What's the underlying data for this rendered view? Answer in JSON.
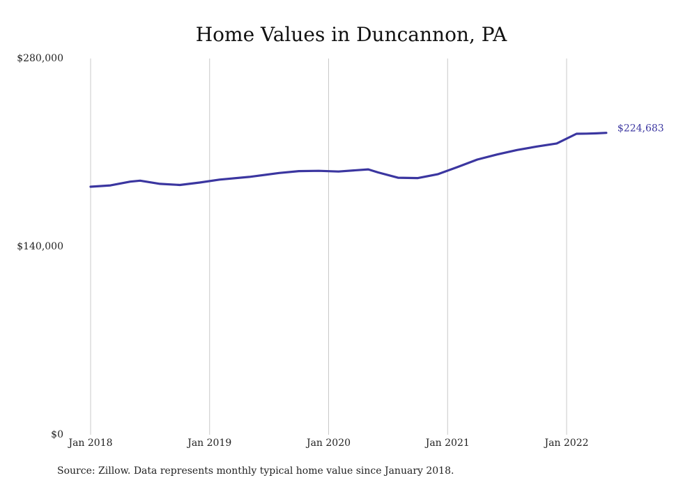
{
  "chart_data": {
    "type": "line",
    "title": "Home Values in Duncannon, PA",
    "xlabel": "",
    "ylabel": "",
    "ylim": [
      0,
      280000
    ],
    "y_ticks": [
      {
        "value": 0,
        "label": "$0"
      },
      {
        "value": 140000,
        "label": "$140,000"
      },
      {
        "value": 280000,
        "label": "$280,000"
      }
    ],
    "x_ticks": [
      {
        "value": "2018-01",
        "label": "Jan 2018"
      },
      {
        "value": "2019-01",
        "label": "Jan 2019"
      },
      {
        "value": "2020-01",
        "label": "Jan 2020"
      },
      {
        "value": "2021-01",
        "label": "Jan 2021"
      },
      {
        "value": "2022-01",
        "label": "Jan 2022"
      }
    ],
    "grid": {
      "vertical": true,
      "horizontal": false
    },
    "line_color": "#3b36a0",
    "end_label": "$224,683",
    "series": [
      {
        "points": [
          {
            "x": "2018-01",
            "y": 184600
          },
          {
            "x": "2018-03",
            "y": 185600
          },
          {
            "x": "2018-05",
            "y": 188400
          },
          {
            "x": "2018-06",
            "y": 189100
          },
          {
            "x": "2018-08",
            "y": 186700
          },
          {
            "x": "2018-10",
            "y": 185900
          },
          {
            "x": "2018-12",
            "y": 187700
          },
          {
            "x": "2019-02",
            "y": 189900
          },
          {
            "x": "2019-05",
            "y": 191900
          },
          {
            "x": "2019-08",
            "y": 194800
          },
          {
            "x": "2019-10",
            "y": 196200
          },
          {
            "x": "2019-12",
            "y": 196400
          },
          {
            "x": "2020-02",
            "y": 195900
          },
          {
            "x": "2020-05",
            "y": 197500
          },
          {
            "x": "2020-06",
            "y": 195200
          },
          {
            "x": "2020-08",
            "y": 191300
          },
          {
            "x": "2020-10",
            "y": 191000
          },
          {
            "x": "2020-12",
            "y": 193900
          },
          {
            "x": "2021-02",
            "y": 199200
          },
          {
            "x": "2021-04",
            "y": 204800
          },
          {
            "x": "2021-06",
            "y": 208600
          },
          {
            "x": "2021-08",
            "y": 211900
          },
          {
            "x": "2021-10",
            "y": 214500
          },
          {
            "x": "2021-12",
            "y": 216800
          },
          {
            "x": "2022-02",
            "y": 224000
          },
          {
            "x": "2022-03",
            "y": 224100
          },
          {
            "x": "2022-04",
            "y": 224300
          },
          {
            "x": "2022-05",
            "y": 224683
          }
        ]
      }
    ]
  },
  "source_note": "Source: Zillow. Data represents monthly typical home value since January 2018."
}
